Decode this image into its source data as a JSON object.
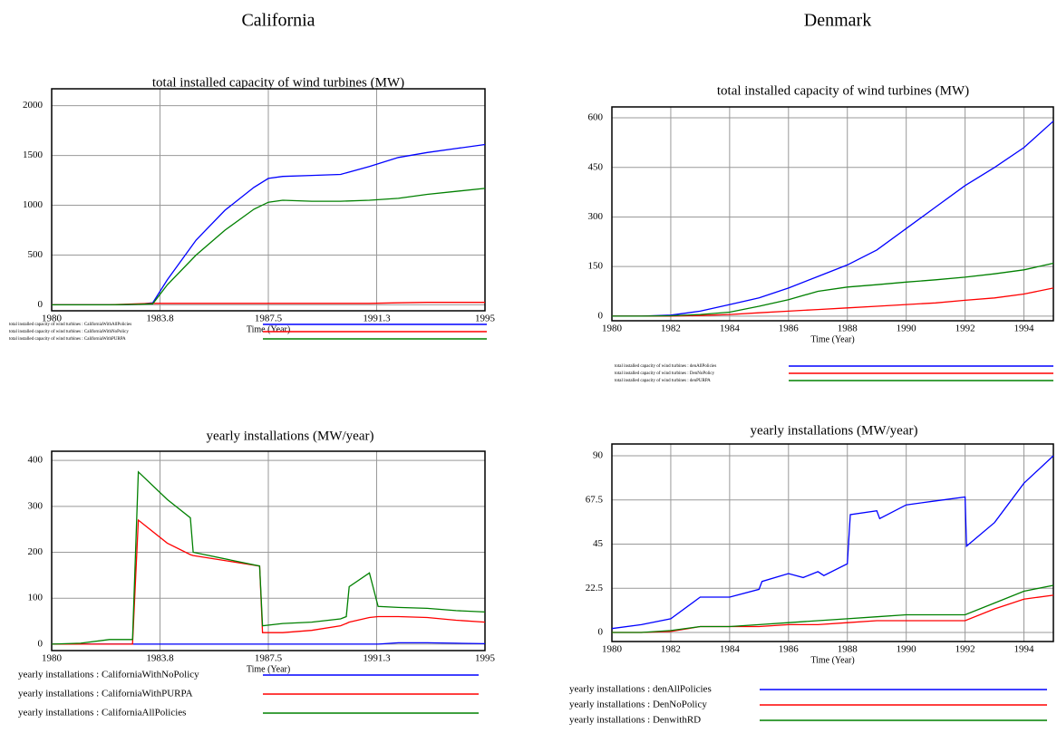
{
  "headings": [
    "California",
    "Denmark"
  ],
  "chart_data": [
    {
      "type": "line",
      "title": "total installed capacity of wind turbines (MW)",
      "xlabel": "Time (Year)",
      "x": [
        1980,
        1981,
        1982,
        1983,
        1983.5,
        1984,
        1985,
        1986,
        1987,
        1987.5,
        1988,
        1989,
        1990,
        1991,
        1992,
        1993,
        1994,
        1995
      ],
      "series": [
        {
          "name": "total installed capacity of wind turbines : CaliforniaWithAllPolicies",
          "color": "#0000ff",
          "values": [
            0,
            0,
            0,
            5,
            20,
            250,
            650,
            950,
            1180,
            1270,
            1290,
            1300,
            1310,
            1390,
            1480,
            1530,
            1570,
            1610
          ]
        },
        {
          "name": "total installed capacity of wind turbines : CaliforniaWithNoPolicy",
          "color": "#ff0000",
          "values": [
            0,
            0,
            0,
            10,
            15,
            15,
            15,
            15,
            15,
            15,
            15,
            15,
            15,
            15,
            20,
            25,
            25,
            25
          ]
        },
        {
          "name": "total installed capacity of wind turbines : CaliforniaWithPURPA",
          "color": "#008000",
          "values": [
            0,
            0,
            0,
            5,
            10,
            200,
            500,
            750,
            960,
            1030,
            1050,
            1040,
            1040,
            1050,
            1070,
            1110,
            1140,
            1170
          ]
        }
      ],
      "xlim": [
        1980,
        1995
      ],
      "xticks": [
        1980,
        {
          "value": 1983.75,
          "label": "1983.8"
        },
        1987.5,
        {
          "value": 1991.25,
          "label": "1991.3"
        },
        1995
      ],
      "ylim": [
        -60,
        2170
      ],
      "yticks": [
        0,
        500,
        1000,
        1500,
        2000
      ],
      "grid": true
    },
    {
      "type": "line",
      "title": "total installed capacity of wind turbines (MW)",
      "xlabel": "Time (Year)",
      "x": [
        1980,
        1981,
        1982,
        1983,
        1984,
        1985,
        1986,
        1987,
        1988,
        1989,
        1990,
        1991,
        1992,
        1993,
        1994,
        1995
      ],
      "series": [
        {
          "name": "total installed capacity of wind turbines : denAllPolicies",
          "color": "#0000ff",
          "values": [
            0,
            0,
            3,
            15,
            35,
            55,
            85,
            120,
            155,
            200,
            265,
            330,
            395,
            450,
            510,
            590
          ]
        },
        {
          "name": "total installed capacity of wind turbines : DenNoPolicy",
          "color": "#ff0000",
          "values": [
            0,
            0,
            0,
            2,
            5,
            10,
            15,
            20,
            25,
            30,
            35,
            40,
            48,
            55,
            67,
            85
          ]
        },
        {
          "name": "total installed capacity of wind turbines : denPURPA",
          "color": "#008000",
          "values": [
            0,
            0,
            1,
            5,
            12,
            30,
            50,
            75,
            88,
            95,
            103,
            110,
            118,
            128,
            140,
            160
          ]
        }
      ],
      "xlim": [
        1980,
        1995
      ],
      "xticks": [
        1980,
        1982,
        1984,
        1986,
        1988,
        1990,
        1992,
        1994
      ],
      "ylim": [
        -14,
        633
      ],
      "yticks": [
        0,
        150,
        300,
        450,
        600
      ],
      "grid": true
    },
    {
      "type": "line",
      "title": "yearly installations (MW/year)",
      "xlabel": "Time (Year)",
      "x": [
        1980,
        1981,
        1982,
        1982.8,
        1983,
        1984,
        1984.8,
        1984.9,
        1987.2,
        1987.3,
        1988,
        1989,
        1990,
        1990.2,
        1990.3,
        1991,
        1991.3,
        1992,
        1993,
        1994,
        1995
      ],
      "series": [
        {
          "name": "yearly installations : CaliforniaWithNoPolicy",
          "color": "#0000ff",
          "values": [
            0,
            0,
            0,
            0,
            0,
            0,
            0,
            0,
            0,
            0,
            0,
            0,
            0,
            0,
            0,
            0,
            0,
            3,
            3,
            2,
            1
          ]
        },
        {
          "name": "yearly installations : CaliforniaWithPURPA",
          "color": "#ff0000",
          "values": [
            0,
            0,
            0,
            0,
            270,
            220,
            195,
            193,
            170,
            25,
            25,
            30,
            40,
            45,
            48,
            58,
            60,
            60,
            58,
            52,
            48
          ]
        },
        {
          "name": "yearly installations : CaliforniaAllPolicies",
          "color": "#008000",
          "values": [
            0,
            2,
            10,
            10,
            375,
            315,
            275,
            200,
            170,
            40,
            45,
            48,
            55,
            60,
            125,
            155,
            82,
            80,
            78,
            73,
            70
          ]
        }
      ],
      "xlim": [
        1980,
        1995
      ],
      "xticks": [
        1980,
        {
          "value": 1983.75,
          "label": "1983.8"
        },
        1987.5,
        {
          "value": 1991.25,
          "label": "1991.3"
        },
        1995
      ],
      "ylim": [
        -14,
        420
      ],
      "yticks": [
        0,
        100,
        200,
        300,
        400
      ],
      "grid": true
    },
    {
      "type": "line",
      "title": "yearly installations (MW/year)",
      "xlabel": "Time (Year)",
      "x": [
        1980,
        1981,
        1982,
        1983,
        1984,
        1985,
        1986,
        1987,
        1988,
        1989,
        1990,
        1991,
        1992,
        1993,
        1994,
        1995
      ],
      "series": [
        {
          "name": "yearly installations : denAllPolicies",
          "color": "#0000ff",
          "x": [
            1980,
            1981,
            1982,
            1983,
            1984,
            1985,
            1985.1,
            1986,
            1986.5,
            1987,
            1987.2,
            1988,
            1988.1,
            1989,
            1989.1,
            1990,
            1991,
            1992,
            1992.05,
            1993,
            1994,
            1995
          ],
          "values": [
            2,
            4,
            7,
            18,
            18,
            22,
            26,
            30,
            28,
            31,
            29,
            35,
            60,
            62,
            58,
            65,
            67,
            69,
            44,
            56,
            76,
            90
          ]
        },
        {
          "name": "yearly installations : DenNoPolicy",
          "color": "#ff0000",
          "values": [
            0,
            0,
            0.5,
            3,
            3,
            3,
            4,
            4,
            5,
            6,
            6,
            6,
            6,
            12,
            17,
            19
          ]
        },
        {
          "name": "yearly installations : DenwithRD",
          "color": "#008000",
          "values": [
            0,
            0,
            1,
            3,
            3,
            4,
            5,
            6,
            7,
            8,
            9,
            9,
            9,
            15,
            21,
            24
          ]
        }
      ],
      "xlim": [
        1980,
        1995
      ],
      "xticks": [
        1980,
        1982,
        1984,
        1986,
        1988,
        1990,
        1992,
        1994
      ],
      "ylim": [
        -4.6,
        96
      ],
      "yticks": [
        0,
        22.5,
        45,
        67.5,
        90
      ],
      "grid": true
    }
  ]
}
